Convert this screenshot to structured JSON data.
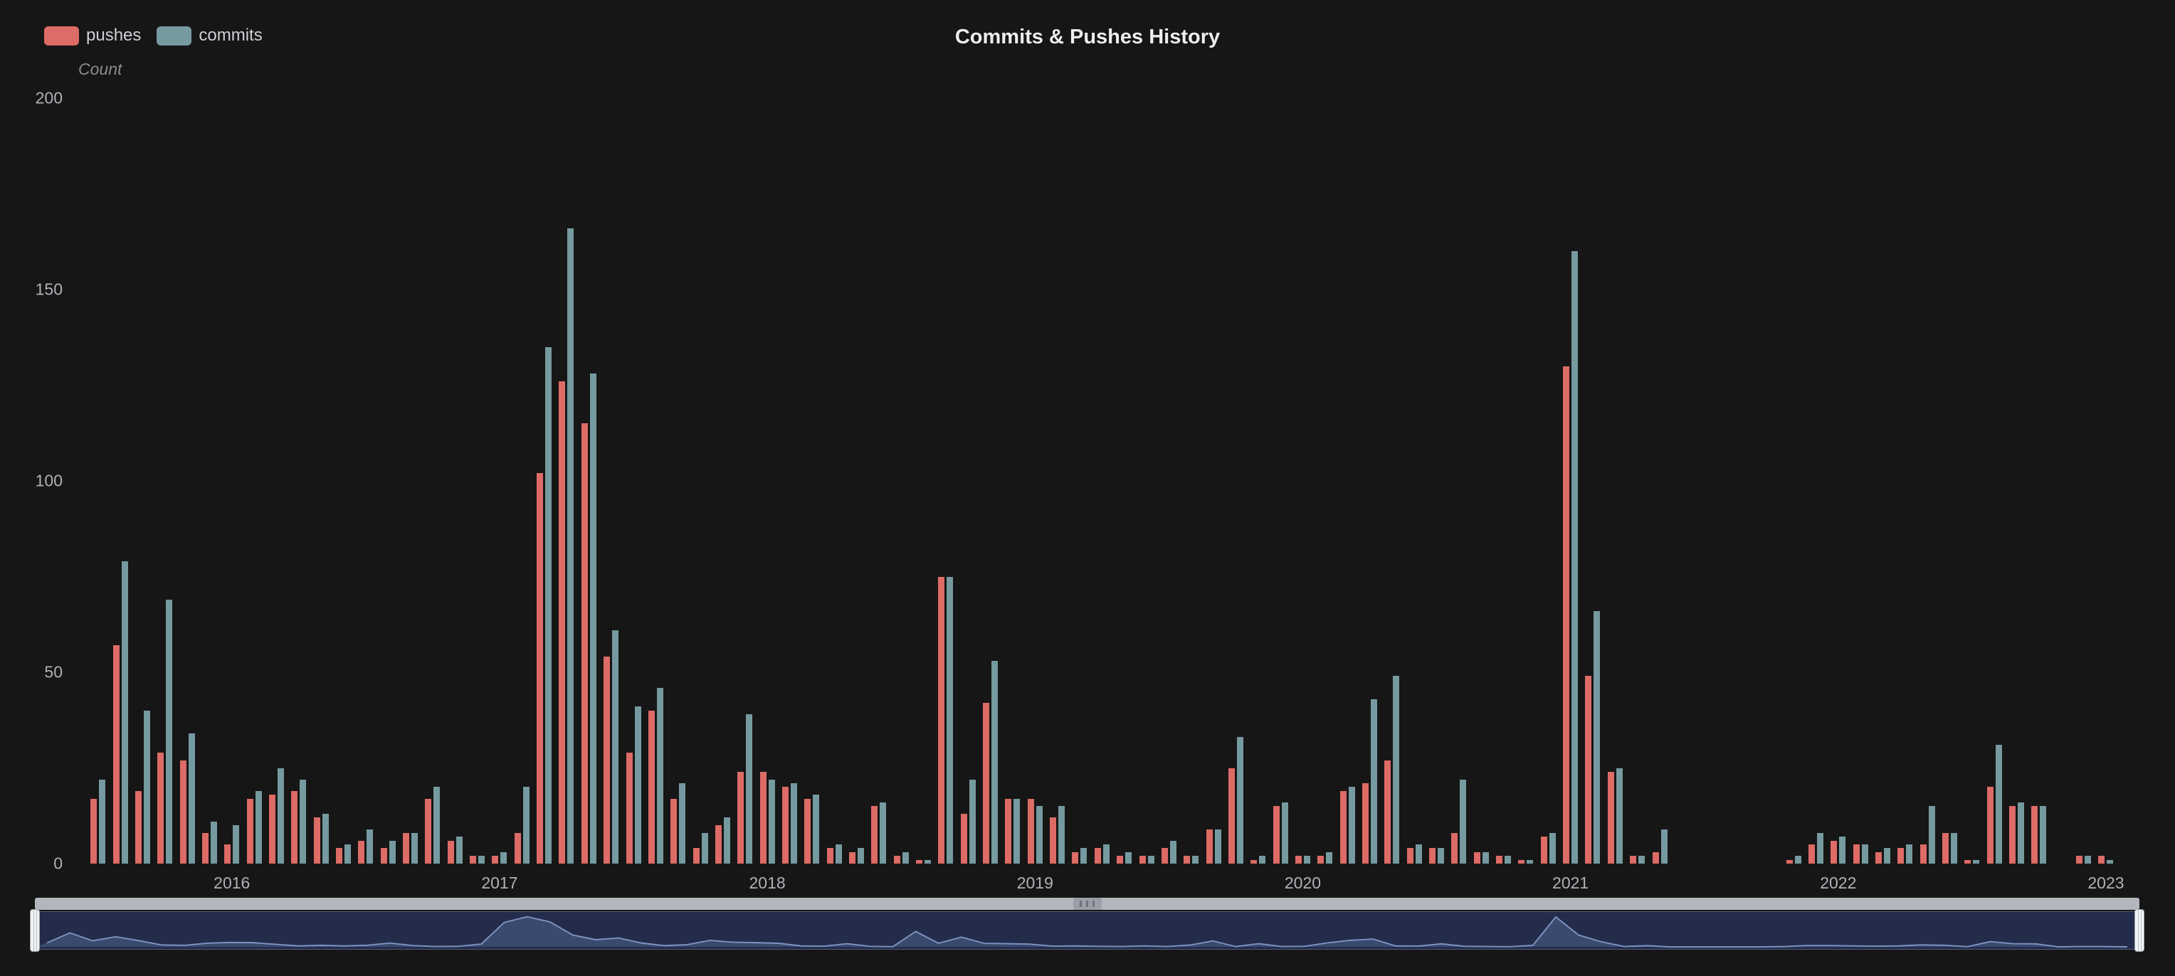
{
  "title": "Commits & Pushes History",
  "legend": {
    "items": [
      {
        "label": "pushes",
        "color": "#dd6b66"
      },
      {
        "label": "commits",
        "color": "#759aa0"
      }
    ]
  },
  "y_axis": {
    "name": "Count",
    "ticks": [
      200,
      150,
      100,
      50,
      0
    ]
  },
  "x_axis": {
    "tick_labels": [
      "2016",
      "2017",
      "2018",
      "2019",
      "2020",
      "2021",
      "2022",
      "2023"
    ]
  },
  "colors": {
    "background": "#161616",
    "title_text": "#eeeef2",
    "legend_text": "#cfd0d6",
    "axis_text": "#b0b0b8",
    "axis_name_text": "#8b8b92",
    "pushes": "#dd6b66",
    "commits": "#759aa0"
  },
  "datazoom": {
    "slider_background": "#232d4b",
    "minimap_area_fill": "#394a6e",
    "minimap_line_color": "#7e92c0",
    "handle_color": "#f1f2f5",
    "move_bar_color": "#b3b7bd"
  },
  "chart_data": {
    "type": "bar",
    "title": "Commits & Pushes History",
    "ylabel": "Count",
    "ylim": [
      0,
      200
    ],
    "grid": false,
    "legend_position": "top-left",
    "x": [
      "2015-07",
      "2015-08",
      "2015-09",
      "2015-10",
      "2015-11",
      "2015-12",
      "2016-01",
      "2016-02",
      "2016-03",
      "2016-04",
      "2016-05",
      "2016-06",
      "2016-07",
      "2016-08",
      "2016-09",
      "2016-10",
      "2016-11",
      "2016-12",
      "2017-01",
      "2017-02",
      "2017-03",
      "2017-04",
      "2017-05",
      "2017-06",
      "2017-07",
      "2017-08",
      "2017-09",
      "2017-10",
      "2017-11",
      "2017-12",
      "2018-01",
      "2018-02",
      "2018-03",
      "2018-04",
      "2018-05",
      "2018-06",
      "2018-07",
      "2018-08",
      "2018-09",
      "2018-10",
      "2018-11",
      "2018-12",
      "2019-01",
      "2019-02",
      "2019-03",
      "2019-04",
      "2019-05",
      "2019-06",
      "2019-07",
      "2019-08",
      "2019-09",
      "2019-10",
      "2019-11",
      "2019-12",
      "2020-01",
      "2020-02",
      "2020-03",
      "2020-04",
      "2020-05",
      "2020-06",
      "2020-07",
      "2020-08",
      "2020-09",
      "2020-10",
      "2020-11",
      "2020-12",
      "2021-01",
      "2021-02",
      "2021-03",
      "2021-04",
      "2021-05",
      "2021-06",
      "2021-07",
      "2021-08",
      "2021-09",
      "2021-10",
      "2021-11",
      "2021-12",
      "2022-01",
      "2022-02",
      "2022-03",
      "2022-04",
      "2022-05",
      "2022-06",
      "2022-07",
      "2022-08",
      "2022-09",
      "2022-10",
      "2022-11",
      "2022-12",
      "2023-01",
      "2023-02"
    ],
    "series": [
      {
        "name": "pushes",
        "color": "#dd6b66",
        "values": [
          17,
          57,
          19,
          29,
          27,
          8,
          5,
          17,
          18,
          19,
          12,
          4,
          6,
          4,
          8,
          17,
          6,
          2,
          2,
          8,
          102,
          126,
          115,
          54,
          29,
          40,
          17,
          4,
          10,
          24,
          24,
          20,
          17,
          4,
          3,
          15,
          2,
          1,
          75,
          13,
          42,
          17,
          17,
          12,
          3,
          4,
          2,
          2,
          4,
          2,
          9,
          25,
          1,
          15,
          2,
          2,
          19,
          21,
          27,
          4,
          4,
          8,
          3,
          2,
          1,
          7,
          130,
          49,
          24,
          2,
          3,
          0,
          0,
          0,
          0,
          0,
          1,
          5,
          6,
          5,
          3,
          4,
          5,
          8,
          1,
          20,
          15,
          15,
          0,
          2,
          2,
          0
        ]
      },
      {
        "name": "commits",
        "color": "#759aa0",
        "values": [
          22,
          79,
          40,
          69,
          34,
          11,
          10,
          19,
          25,
          22,
          13,
          5,
          9,
          6,
          8,
          20,
          7,
          2,
          3,
          20,
          135,
          166,
          128,
          61,
          41,
          46,
          21,
          8,
          12,
          39,
          22,
          21,
          18,
          5,
          4,
          16,
          3,
          1,
          75,
          22,
          53,
          17,
          15,
          15,
          4,
          5,
          3,
          2,
          6,
          2,
          9,
          33,
          2,
          16,
          2,
          3,
          20,
          43,
          49,
          5,
          4,
          22,
          3,
          2,
          1,
          8,
          160,
          66,
          25,
          2,
          9,
          0,
          0,
          0,
          0,
          0,
          2,
          8,
          7,
          5,
          4,
          5,
          15,
          8,
          1,
          31,
          16,
          15,
          0,
          2,
          1,
          0
        ]
      }
    ]
  }
}
